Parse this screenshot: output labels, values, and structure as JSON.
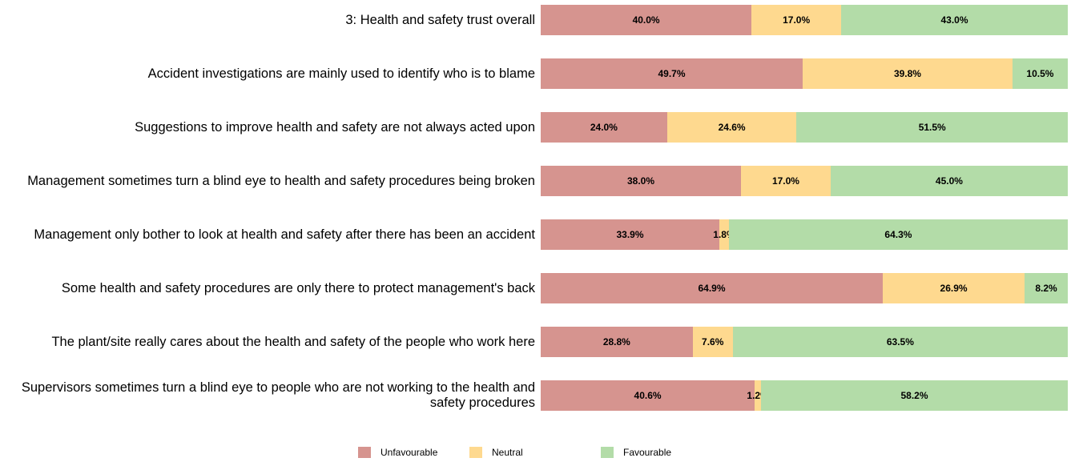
{
  "chart_data": {
    "type": "stacked-bar-horizontal",
    "categories": [
      "3: Health and safety trust overall",
      "Accident investigations are mainly used to identify who is to blame",
      "Suggestions to improve health and safety are not always acted upon",
      "Management sometimes turn a blind eye to health and safety procedures being broken",
      "Management only bother to look at health and safety after there has been an accident",
      "Some health and safety procedures are only there to protect management's back",
      "The plant/site really cares about the health and safety of the people who work here",
      "Supervisors sometimes turn a blind eye to people who are not working to the health and safety procedures"
    ],
    "series": [
      {
        "name": "Unfavourable",
        "color": "#d6948f",
        "values": [
          40.0,
          49.7,
          24.0,
          38.0,
          33.9,
          64.9,
          28.8,
          40.6
        ],
        "value_labels": [
          "40.0%",
          "49.7%",
          "24.0%",
          "38.0%",
          "33.9%",
          "64.9%",
          "28.8%",
          "40.6%"
        ]
      },
      {
        "name": "Neutral",
        "color": "#fed98f",
        "values": [
          17.0,
          39.8,
          24.6,
          17.0,
          1.8,
          26.9,
          7.6,
          1.2
        ],
        "value_labels": [
          "17.0%",
          "39.8%",
          "24.6%",
          "17.0%",
          "1.8%",
          "26.9%",
          "7.6%",
          "1.2%"
        ]
      },
      {
        "name": "Favourable",
        "color": "#b3dca8",
        "values": [
          43.0,
          10.5,
          51.5,
          45.0,
          64.3,
          8.2,
          63.5,
          58.2
        ],
        "value_labels": [
          "43.0%",
          "10.5%",
          "51.5%",
          "45.0%",
          "64.3%",
          "8.2%",
          "63.5%",
          "58.2%"
        ]
      }
    ],
    "legend": "bottom"
  }
}
